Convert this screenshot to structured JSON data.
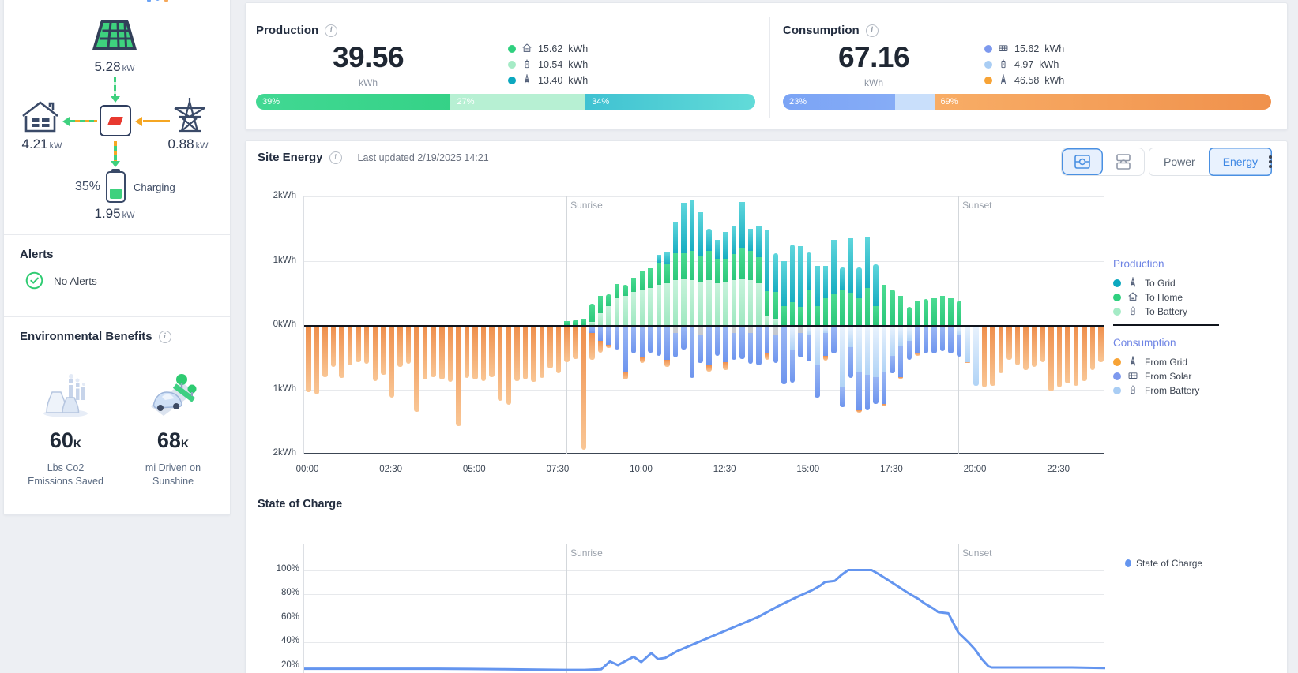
{
  "sidebar": {
    "flow": {
      "solar_value": "5.28",
      "solar_unit": "kW",
      "home_value": "4.21",
      "home_unit": "kW",
      "grid_value": "0.88",
      "grid_unit": "kW",
      "battery_value": "1.95",
      "battery_unit": "kW",
      "battery_pct": "35%",
      "battery_pct_num": 35,
      "battery_status": "Charging"
    },
    "alerts": {
      "title": "Alerts",
      "status": "No Alerts"
    },
    "env": {
      "title": "Environmental Benefits",
      "items": [
        {
          "value": "60",
          "suffix": "K",
          "label": "Lbs Co2 Emissions Saved",
          "icon": "factory-icon"
        },
        {
          "value": "68",
          "suffix": "K",
          "label": "mi Driven on Sunshine",
          "icon": "car-icon"
        }
      ]
    }
  },
  "production": {
    "title": "Production",
    "value": "39.56",
    "unit": "kWh",
    "legend": [
      {
        "color": "#2fd07f",
        "icon": "home",
        "value": "15.62",
        "unit": "kWh"
      },
      {
        "color": "#a5ebc6",
        "icon": "battery",
        "value": "10.54",
        "unit": "kWh"
      },
      {
        "color": "#0ca8bf",
        "icon": "tower",
        "value": "13.40",
        "unit": "kWh"
      }
    ],
    "bar": [
      {
        "pct": 39,
        "label": "39%",
        "c1": "#41d893",
        "c2": "#35d287"
      },
      {
        "pct": 27,
        "label": "27%",
        "c1": "#b7f0d3",
        "c2": "#b7f0d3"
      },
      {
        "pct": 34,
        "label": "34%",
        "c1": "#40c2d2",
        "c2": "#62dbd8"
      }
    ]
  },
  "consumption": {
    "title": "Consumption",
    "value": "67.16",
    "unit": "kWh",
    "legend": [
      {
        "color": "#7d99ee",
        "icon": "panel",
        "value": "15.62",
        "unit": "kWh"
      },
      {
        "color": "#a9cdf4",
        "icon": "battery",
        "value": "4.97",
        "unit": "kWh"
      },
      {
        "color": "#f7a336",
        "icon": "tower",
        "value": "46.58",
        "unit": "kWh"
      }
    ],
    "bar": [
      {
        "pct": 23,
        "label": "23%",
        "c1": "#7ba4f5",
        "c2": "#86acf6"
      },
      {
        "pct": 8,
        "label": "",
        "c1": "#c9dffb",
        "c2": "#c9dffb"
      },
      {
        "pct": 69,
        "label": "69%",
        "c1": "#f8ad66",
        "c2": "#f0914c"
      }
    ]
  },
  "site_energy": {
    "title": "Site Energy",
    "last_updated_label": "Last updated",
    "last_updated": "2/19/2025 14:21",
    "power_label": "Power",
    "energy_label": "Energy",
    "legend": {
      "production_title": "Production",
      "production_items": [
        {
          "color": "#0ca8bf",
          "icon": "tower",
          "label": "To Grid"
        },
        {
          "color": "#2fd07f",
          "icon": "home",
          "label": "To Home"
        },
        {
          "color": "#a5ebc6",
          "icon": "battery",
          "label": "To Battery"
        }
      ],
      "consumption_title": "Consumption",
      "consumption_items": [
        {
          "color": "#f7a336",
          "icon": "tower",
          "label": "From Grid"
        },
        {
          "color": "#7d99ee",
          "icon": "panel",
          "label": "From Solar"
        },
        {
          "color": "#a9cdf4",
          "icon": "battery",
          "label": "From Battery"
        }
      ]
    }
  },
  "soc": {
    "title": "State of Charge",
    "legend_label": "State of Charge"
  },
  "chart_data": [
    {
      "type": "bar",
      "title": "Site Energy",
      "ylabel": "kWh",
      "ylim": [
        -2,
        2
      ],
      "yticks": [
        "2kWh",
        "1kWh",
        "0kWh",
        "1kWh",
        "2kWh"
      ],
      "xticks": [
        "00:00",
        "02:30",
        "05:00",
        "07:30",
        "10:00",
        "12:30",
        "15:00",
        "17:30",
        "20:00",
        "22:30"
      ],
      "interval_minutes": 15,
      "start": "00:00",
      "sunrise_t": 7.86,
      "sunset_t": 19.6,
      "sunrise_label": "Sunrise",
      "sunset_label": "Sunset",
      "series_keys": [
        "toBattery",
        "toHome",
        "toGrid",
        "fromSolar",
        "fromBattery",
        "fromGrid",
        "unknown"
      ],
      "colors": {
        "toBattery": [
          "#c8f3dc",
          "#9fe8c1"
        ],
        "toHome": [
          "#4bdb92",
          "#2cc87b"
        ],
        "toGrid": [
          "#5fd6dc",
          "#17adc1"
        ],
        "fromSolar": [
          "#9ab7f4",
          "#6e95ee"
        ],
        "fromBattery": [
          "#e8f2fd",
          "#b0d3f6"
        ],
        "fromGrid": [
          "#ef8f4c",
          "#f9c695"
        ],
        "unknown": [
          "#c9cdd2",
          "#c4c8ce"
        ]
      },
      "bars": [
        [
          0,
          0,
          0,
          0,
          0,
          1.02,
          0
        ],
        [
          0,
          0,
          0,
          0,
          0,
          1.05,
          0
        ],
        [
          0,
          0,
          0,
          0,
          0,
          0.78,
          0
        ],
        [
          0,
          0,
          0,
          0,
          0,
          0.62,
          0
        ],
        [
          0,
          0,
          0,
          0,
          0,
          0.8,
          0
        ],
        [
          0,
          0,
          0,
          0,
          0,
          0.6,
          0
        ],
        [
          0,
          0,
          0,
          0,
          0,
          0.55,
          0
        ],
        [
          0,
          0,
          0,
          0,
          0,
          0.58,
          0
        ],
        [
          0,
          0,
          0,
          0,
          0,
          0.85,
          0
        ],
        [
          0,
          0,
          0,
          0,
          0,
          0.75,
          0
        ],
        [
          0,
          0,
          0,
          0,
          0,
          1.1,
          0
        ],
        [
          0,
          0,
          0,
          0,
          0,
          0.62,
          0
        ],
        [
          0,
          0,
          0,
          0,
          0,
          0.58,
          0
        ],
        [
          0,
          0,
          0,
          0,
          0,
          1.32,
          0
        ],
        [
          0,
          0,
          0,
          0,
          0,
          0.82,
          0
        ],
        [
          0,
          0,
          0,
          0,
          0,
          0.78,
          0
        ],
        [
          0,
          0,
          0,
          0,
          0,
          0.82,
          0
        ],
        [
          0,
          0,
          0,
          0,
          0,
          0.86,
          0
        ],
        [
          0,
          0,
          0,
          0,
          0,
          1.55,
          0
        ],
        [
          0,
          0,
          0,
          0,
          0,
          0.8,
          0
        ],
        [
          0,
          0,
          0,
          0,
          0,
          0.82,
          0
        ],
        [
          0,
          0,
          0,
          0,
          0,
          0.85,
          0
        ],
        [
          0,
          0,
          0,
          0,
          0,
          0.78,
          0
        ],
        [
          0,
          0,
          0,
          0,
          0,
          1.15,
          0
        ],
        [
          0,
          0,
          0,
          0,
          0,
          1.22,
          0
        ],
        [
          0,
          0,
          0,
          0,
          0,
          0.85,
          0
        ],
        [
          0,
          0,
          0,
          0,
          0,
          0.82,
          0
        ],
        [
          0,
          0,
          0,
          0,
          0,
          0.86,
          0
        ],
        [
          0,
          0,
          0,
          0,
          0,
          0.8,
          0
        ],
        [
          0,
          0,
          0,
          0,
          0,
          0.65,
          0
        ],
        [
          0,
          0,
          0,
          0,
          0,
          0.72,
          0
        ],
        [
          0,
          0.06,
          0,
          0,
          0,
          0.55,
          0
        ],
        [
          0,
          0.09,
          0,
          0,
          0,
          0.5,
          0
        ],
        [
          0,
          0.1,
          0,
          0,
          0,
          1.92,
          0
        ],
        [
          0.05,
          0.28,
          0,
          0.1,
          0,
          0.42,
          0
        ],
        [
          0.18,
          0.28,
          0,
          0.22,
          0,
          0.18,
          0
        ],
        [
          0.3,
          0.18,
          0,
          0.28,
          0,
          0.05,
          0
        ],
        [
          0.42,
          0.22,
          0,
          0.35,
          0,
          0,
          0
        ],
        [
          0.45,
          0.18,
          0,
          0.7,
          0,
          0.12,
          0
        ],
        [
          0.52,
          0.22,
          0,
          0.42,
          0,
          0,
          0
        ],
        [
          0.55,
          0.28,
          0,
          0.48,
          0,
          0.08,
          0
        ],
        [
          0.58,
          0.3,
          0,
          0.4,
          0,
          0,
          0
        ],
        [
          0.62,
          0.35,
          0.12,
          0.45,
          0,
          0,
          0
        ],
        [
          0.65,
          0.3,
          0.18,
          0.52,
          0,
          0.1,
          0
        ],
        [
          0.7,
          0.42,
          0.48,
          0.38,
          0,
          0,
          0.1
        ],
        [
          0.72,
          0.4,
          0.78,
          0.35,
          0,
          0,
          0
        ],
        [
          0.7,
          0.45,
          0.8,
          0.8,
          0,
          0,
          0
        ],
        [
          0.68,
          0.4,
          0.68,
          0.45,
          0,
          0,
          0.12
        ],
        [
          0.7,
          0.45,
          0.35,
          0.6,
          0,
          0.1,
          0
        ],
        [
          0.65,
          0.38,
          0.3,
          0.45,
          0,
          0,
          0
        ],
        [
          0.68,
          0.35,
          0.42,
          0.55,
          0,
          0.12,
          0
        ],
        [
          0.7,
          0.4,
          0.45,
          0.42,
          0,
          0,
          0.1
        ],
        [
          0.72,
          0.48,
          0.72,
          0.5,
          0,
          0,
          0
        ],
        [
          0.7,
          0.45,
          0.35,
          0.48,
          0,
          0,
          0.1
        ],
        [
          0.65,
          0.4,
          0.48,
          0.6,
          0,
          0,
          0
        ],
        [
          0.15,
          0.38,
          0.95,
          0.42,
          0,
          0.1,
          0
        ],
        [
          0.1,
          0.42,
          0.6,
          0.45,
          0,
          0,
          0.12
        ],
        [
          0,
          0.3,
          0.7,
          0.9,
          0,
          0,
          0
        ],
        [
          0,
          0.35,
          0.9,
          0.52,
          0.35,
          0,
          0
        ],
        [
          0,
          0.28,
          0.95,
          0.38,
          0,
          0,
          0.1
        ],
        [
          0,
          0.55,
          0.58,
          0.42,
          0.12,
          0,
          0
        ],
        [
          0,
          0.3,
          0.62,
          0.5,
          0.6,
          0,
          0
        ],
        [
          0,
          0.42,
          0.5,
          0.35,
          0.1,
          0.08,
          0
        ],
        [
          0,
          0.48,
          0.85,
          0.42,
          0,
          0,
          0
        ],
        [
          0,
          0.55,
          0.35,
          0.3,
          0.95,
          0,
          0
        ],
        [
          0,
          0.5,
          0.85,
          0.48,
          0.32,
          0,
          0
        ],
        [
          0,
          0.42,
          0.48,
          0.6,
          0.7,
          0.04,
          0
        ],
        [
          0,
          0.58,
          0.78,
          0.55,
          0.75,
          0,
          0
        ],
        [
          0,
          0.3,
          0.65,
          0.42,
          0.78,
          0,
          0
        ],
        [
          0,
          0.62,
          0,
          0.5,
          0.7,
          0.04,
          0
        ],
        [
          0,
          0.55,
          0,
          0.28,
          0.45,
          0,
          0
        ],
        [
          0,
          0.45,
          0,
          0.48,
          0.3,
          0.03,
          0
        ],
        [
          0,
          0.28,
          0,
          0.3,
          0.22,
          0,
          0
        ],
        [
          0,
          0.38,
          0,
          0.4,
          0,
          0.05,
          0
        ],
        [
          0,
          0.4,
          0,
          0.42,
          0,
          0,
          0
        ],
        [
          0,
          0.42,
          0,
          0.42,
          0,
          0,
          0
        ],
        [
          0,
          0.45,
          0,
          0.38,
          0,
          0,
          0
        ],
        [
          0,
          0.42,
          0,
          0.42,
          0,
          0,
          0
        ],
        [
          0,
          0.38,
          0,
          0.35,
          0.12,
          0,
          0
        ],
        [
          0,
          0,
          0,
          0,
          0.55,
          0.02,
          0
        ],
        [
          0,
          0,
          0,
          0,
          0.92,
          0,
          0
        ],
        [
          0,
          0,
          0,
          0,
          0,
          0.95,
          0
        ],
        [
          0,
          0,
          0,
          0,
          0,
          0.92,
          0
        ],
        [
          0,
          0,
          0,
          0,
          0,
          0.72,
          0
        ],
        [
          0,
          0,
          0,
          0,
          0,
          0.52,
          0
        ],
        [
          0,
          0,
          0,
          0,
          0,
          0.6,
          0
        ],
        [
          0,
          0,
          0,
          0,
          0,
          0.68,
          0
        ],
        [
          0,
          0,
          0,
          0,
          0,
          0.62,
          0
        ],
        [
          0,
          0,
          0,
          0,
          0,
          0.55,
          0
        ],
        [
          0,
          0,
          0,
          0,
          0,
          1.0,
          0
        ],
        [
          0,
          0,
          0,
          0,
          0,
          0.95,
          0
        ],
        [
          0,
          0,
          0,
          0,
          0,
          0.88,
          0
        ],
        [
          0,
          0,
          0,
          0,
          0,
          0.92,
          0
        ],
        [
          0,
          0,
          0,
          0,
          0,
          0.85,
          0
        ],
        [
          0,
          0,
          0,
          0,
          0,
          0.68,
          0
        ],
        [
          0,
          0,
          0,
          0,
          0,
          0.55,
          0
        ]
      ]
    },
    {
      "type": "line",
      "title": "State of Charge",
      "series_name": "State of Charge",
      "color": "#6495ef",
      "ylim": [
        0,
        100
      ],
      "yticks": [
        "100%",
        "80%",
        "60%",
        "40%",
        "20%"
      ],
      "sunrise_t": 7.86,
      "sunset_t": 19.6,
      "sunrise_label": "Sunrise",
      "sunset_label": "Sunset",
      "points": [
        [
          0,
          18
        ],
        [
          1,
          18
        ],
        [
          2,
          18
        ],
        [
          3,
          18
        ],
        [
          4,
          18
        ],
        [
          5,
          17.8
        ],
        [
          6,
          17.5
        ],
        [
          7,
          17.2
        ],
        [
          7.8,
          17
        ],
        [
          8.4,
          17
        ],
        [
          8.9,
          17.5
        ],
        [
          9.16,
          24
        ],
        [
          9.4,
          21
        ],
        [
          9.87,
          28
        ],
        [
          10.1,
          23.5
        ],
        [
          10.4,
          31
        ],
        [
          10.6,
          26
        ],
        [
          10.82,
          27
        ],
        [
          11.2,
          33
        ],
        [
          11.8,
          40
        ],
        [
          12.4,
          47
        ],
        [
          13,
          54
        ],
        [
          13.6,
          61
        ],
        [
          14.2,
          70
        ],
        [
          14.8,
          78
        ],
        [
          15.2,
          83
        ],
        [
          15.46,
          87
        ],
        [
          15.6,
          90
        ],
        [
          15.9,
          91
        ],
        [
          16.1,
          96
        ],
        [
          16.3,
          100
        ],
        [
          17.0,
          100
        ],
        [
          17.25,
          96
        ],
        [
          17.7,
          88
        ],
        [
          18.15,
          80
        ],
        [
          18.4,
          76
        ],
        [
          18.6,
          72
        ],
        [
          18.85,
          68
        ],
        [
          19.0,
          65
        ],
        [
          19.3,
          64
        ],
        [
          19.6,
          48
        ],
        [
          19.9,
          40
        ],
        [
          20.1,
          34
        ],
        [
          20.3,
          26
        ],
        [
          20.5,
          20
        ],
        [
          20.6,
          19
        ],
        [
          21.5,
          19
        ],
        [
          23,
          19
        ],
        [
          24,
          18.5
        ]
      ]
    }
  ]
}
